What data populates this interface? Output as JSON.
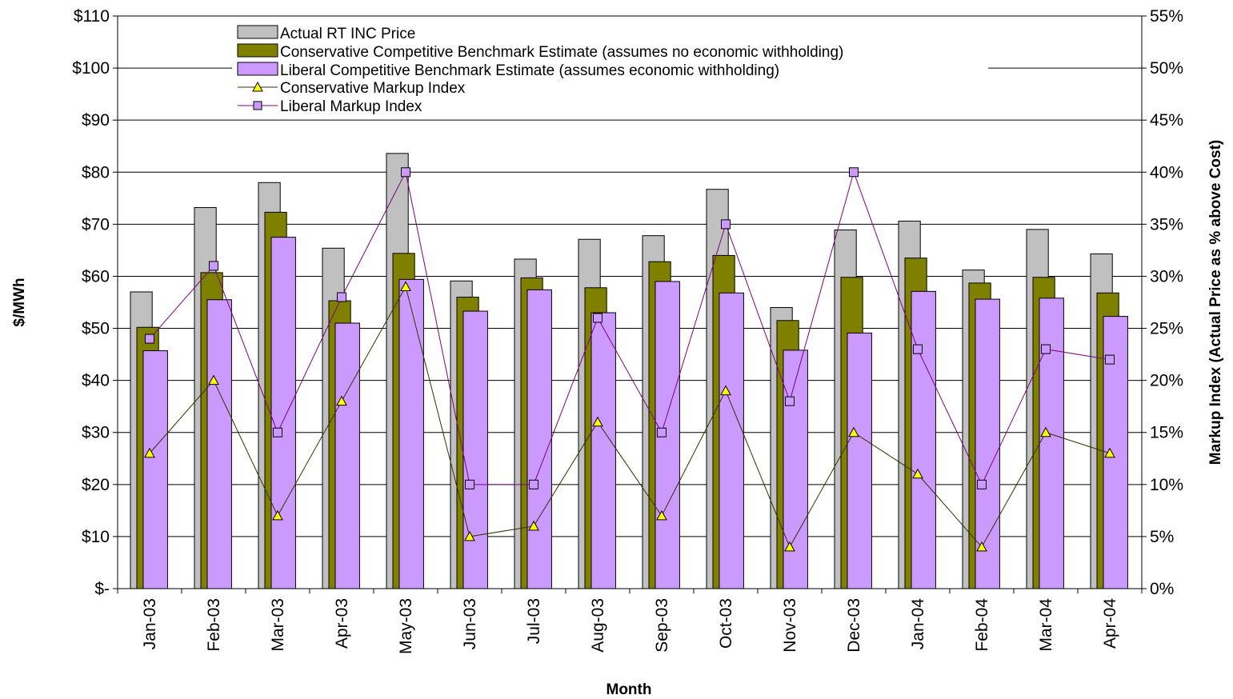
{
  "chart_data": {
    "type": "bar",
    "categories": [
      "Jan-03",
      "Feb-03",
      "Mar-03",
      "Apr-03",
      "May-03",
      "Jun-03",
      "Jul-03",
      "Aug-03",
      "Sep-03",
      "Oct-03",
      "Nov-03",
      "Dec-03",
      "Jan-04",
      "Feb-04",
      "Mar-04",
      "Apr-04"
    ],
    "xlabel": "Month",
    "ylabel": "$/MWh",
    "y2label": "Markup Index (Actual Price as % above Cost)",
    "ylim": [
      0,
      110
    ],
    "y2lim": [
      0,
      55
    ],
    "yticks": [
      0,
      10,
      20,
      30,
      40,
      50,
      60,
      70,
      80,
      90,
      100,
      110
    ],
    "yticklabels": [
      "$-",
      "$10",
      "$20",
      "$30",
      "$40",
      "$50",
      "$60",
      "$70",
      "$80",
      "$90",
      "$100",
      "$110"
    ],
    "y2ticks": [
      0,
      5,
      10,
      15,
      20,
      25,
      30,
      35,
      40,
      45,
      50,
      55
    ],
    "y2ticklabels": [
      "0%",
      "5%",
      "10%",
      "15%",
      "20%",
      "25%",
      "30%",
      "35%",
      "40%",
      "45%",
      "50%",
      "55%"
    ],
    "grid": true,
    "legend_position": "top-left",
    "series": [
      {
        "name": "Actual RT INC Price",
        "kind": "bar",
        "axis": "left",
        "color": "#c0c0c0",
        "values": [
          57,
          73.2,
          78,
          65.4,
          83.6,
          59.1,
          63.3,
          67.1,
          67.8,
          76.7,
          54,
          68.9,
          70.6,
          61.2,
          69,
          64.3
        ]
      },
      {
        "name": "Conservative Competitive Benchmark Estimate (assumes no economic withholding)",
        "kind": "bar",
        "axis": "left",
        "color": "#808000",
        "values": [
          50.2,
          60.7,
          72.3,
          55.3,
          64.4,
          56,
          59.7,
          57.8,
          62.8,
          64,
          51.5,
          59.8,
          63.5,
          58.7,
          59.8,
          56.8
        ]
      },
      {
        "name": "Liberal Competitive Benchmark Estimate (assumes economic withholding)",
        "kind": "bar",
        "axis": "left",
        "color": "#cc99ff",
        "values": [
          45.7,
          55.5,
          67.5,
          51,
          59.4,
          53.3,
          57.4,
          53,
          59,
          56.8,
          45.8,
          49.1,
          57.1,
          55.6,
          55.8,
          52.3
        ]
      },
      {
        "name": "Conservative Markup Index",
        "kind": "line",
        "axis": "right",
        "color": "#333300",
        "marker": "triangle",
        "marker_color": "#ffff00",
        "values": [
          13,
          20,
          7,
          18,
          29,
          5,
          6,
          16,
          7,
          19,
          4,
          15,
          11,
          4,
          15,
          13
        ]
      },
      {
        "name": "Liberal Markup Index",
        "kind": "line",
        "axis": "right",
        "color": "#800080",
        "marker": "square",
        "marker_color": "#cc99ff",
        "values": [
          24,
          31,
          15,
          28,
          40,
          10,
          10,
          26,
          15,
          35,
          18,
          40,
          23,
          10,
          23,
          22
        ]
      }
    ]
  }
}
